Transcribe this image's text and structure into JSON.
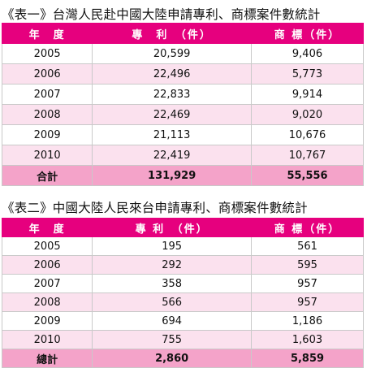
{
  "table1": {
    "caption": "《表一》台灣人民赴中國大陸申請專利、商標案件數統計",
    "headers": [
      "年　度",
      "專　利　（件）",
      "商 標（件）"
    ],
    "rows": [
      [
        "2005",
        "20,599",
        "9,406"
      ],
      [
        "2006",
        "22,496",
        "5,773"
      ],
      [
        "2007",
        "22,833",
        "9,914"
      ],
      [
        "2008",
        "22,469",
        "9,020"
      ],
      [
        "2009",
        "21,113",
        "10,676"
      ],
      [
        "2010",
        "22,419",
        "10,767"
      ]
    ],
    "total": [
      "合計",
      "131,929",
      "55,556"
    ]
  },
  "table2": {
    "caption": "《表二》中國大陸人民來台申請專利、商標案件數統計",
    "headers": [
      "年　度",
      "專 利　（件）",
      "商 標（件）"
    ],
    "rows": [
      [
        "2005",
        "195",
        "561"
      ],
      [
        "2006",
        "292",
        "595"
      ],
      [
        "2007",
        "358",
        "957"
      ],
      [
        "2008",
        "566",
        "957"
      ],
      [
        "2009",
        "694",
        "1,186"
      ],
      [
        "2010",
        "755",
        "1,603"
      ]
    ],
    "total": [
      "總計",
      "2,860",
      "5,859"
    ]
  },
  "colors": {
    "header": "#e6007e",
    "row_alt": "#fbe1ee",
    "total_row": "#f4a3c9"
  }
}
